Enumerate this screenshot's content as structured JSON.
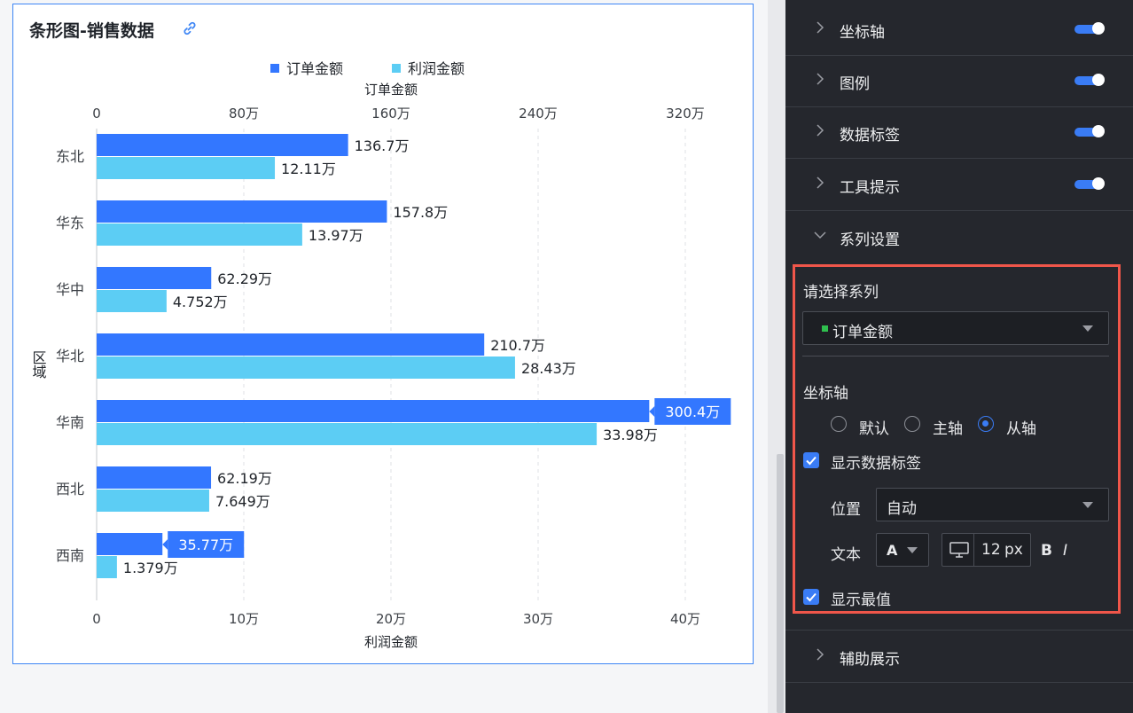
{
  "card": {
    "title": "条形图-销售数据",
    "link_icon": "link-icon"
  },
  "chart_data": {
    "type": "bar",
    "orientation": "horizontal",
    "categories": [
      "东北",
      "华东",
      "华中",
      "华北",
      "华南",
      "西北",
      "西南"
    ],
    "series": [
      {
        "name": "订单金额",
        "values": [
          136.7,
          157.8,
          62.29,
          210.7,
          300.4,
          62.19,
          35.77
        ],
        "labels": [
          "136.7万",
          "157.8万",
          "62.29万",
          "210.7万",
          "300.4万",
          "62.19万",
          "35.77万"
        ],
        "color": "#3377ff",
        "axis": "top"
      },
      {
        "name": "利润金额",
        "values": [
          12.11,
          13.97,
          4.752,
          28.43,
          33.98,
          7.649,
          1.379
        ],
        "labels": [
          "12.11万",
          "13.97万",
          "4.752万",
          "28.43万",
          "33.98万",
          "7.649万",
          "1.379万"
        ],
        "color": "#5ccdf4",
        "axis": "bottom"
      }
    ],
    "highlighted_labels": [
      {
        "series": 0,
        "index": 4,
        "note": "max"
      },
      {
        "series": 0,
        "index": 6,
        "note": "min"
      }
    ],
    "top_axis": {
      "label": "订单金额",
      "ticks": [
        "0",
        "80万",
        "160万",
        "240万",
        "320万"
      ],
      "range": [
        0,
        320
      ],
      "unit": "万"
    },
    "bottom_axis": {
      "label": "利润金额",
      "ticks": [
        "0",
        "10万",
        "20万",
        "30万",
        "40万"
      ],
      "range": [
        0,
        40
      ],
      "unit": "万"
    },
    "y_axis_label": "区域",
    "legend": {
      "position": "top-center",
      "entries": [
        "订单金额",
        "利润金额"
      ]
    },
    "grid": "vertical dashed"
  },
  "panel": {
    "sections_top": [
      {
        "label": "坐标轴",
        "toggle": true
      },
      {
        "label": "图例",
        "toggle": true
      },
      {
        "label": "数据标签",
        "toggle": true
      },
      {
        "label": "工具提示",
        "toggle": true
      }
    ],
    "series_section": {
      "label": "系列设置",
      "expanded": true
    },
    "choose_series_label": "请选择系列",
    "series_select_value": "订单金额",
    "series_select_dot_color": "#2fbf4e",
    "axis_group_label": "坐标轴",
    "axis_options": [
      "默认",
      "主轴",
      "从轴"
    ],
    "axis_selected": "从轴",
    "show_data_labels": {
      "label": "显示数据标签",
      "checked": true
    },
    "position_label": "位置",
    "position_value": "自动",
    "text_label": "文本",
    "font_color_glyph": "A",
    "font_size_value": "12",
    "font_size_unit": "px",
    "bold_glyph": "B",
    "italic_glyph": "I",
    "show_extremes": {
      "label": "显示最值",
      "checked": true
    },
    "bottom_section": {
      "label": "辅助展示"
    }
  }
}
